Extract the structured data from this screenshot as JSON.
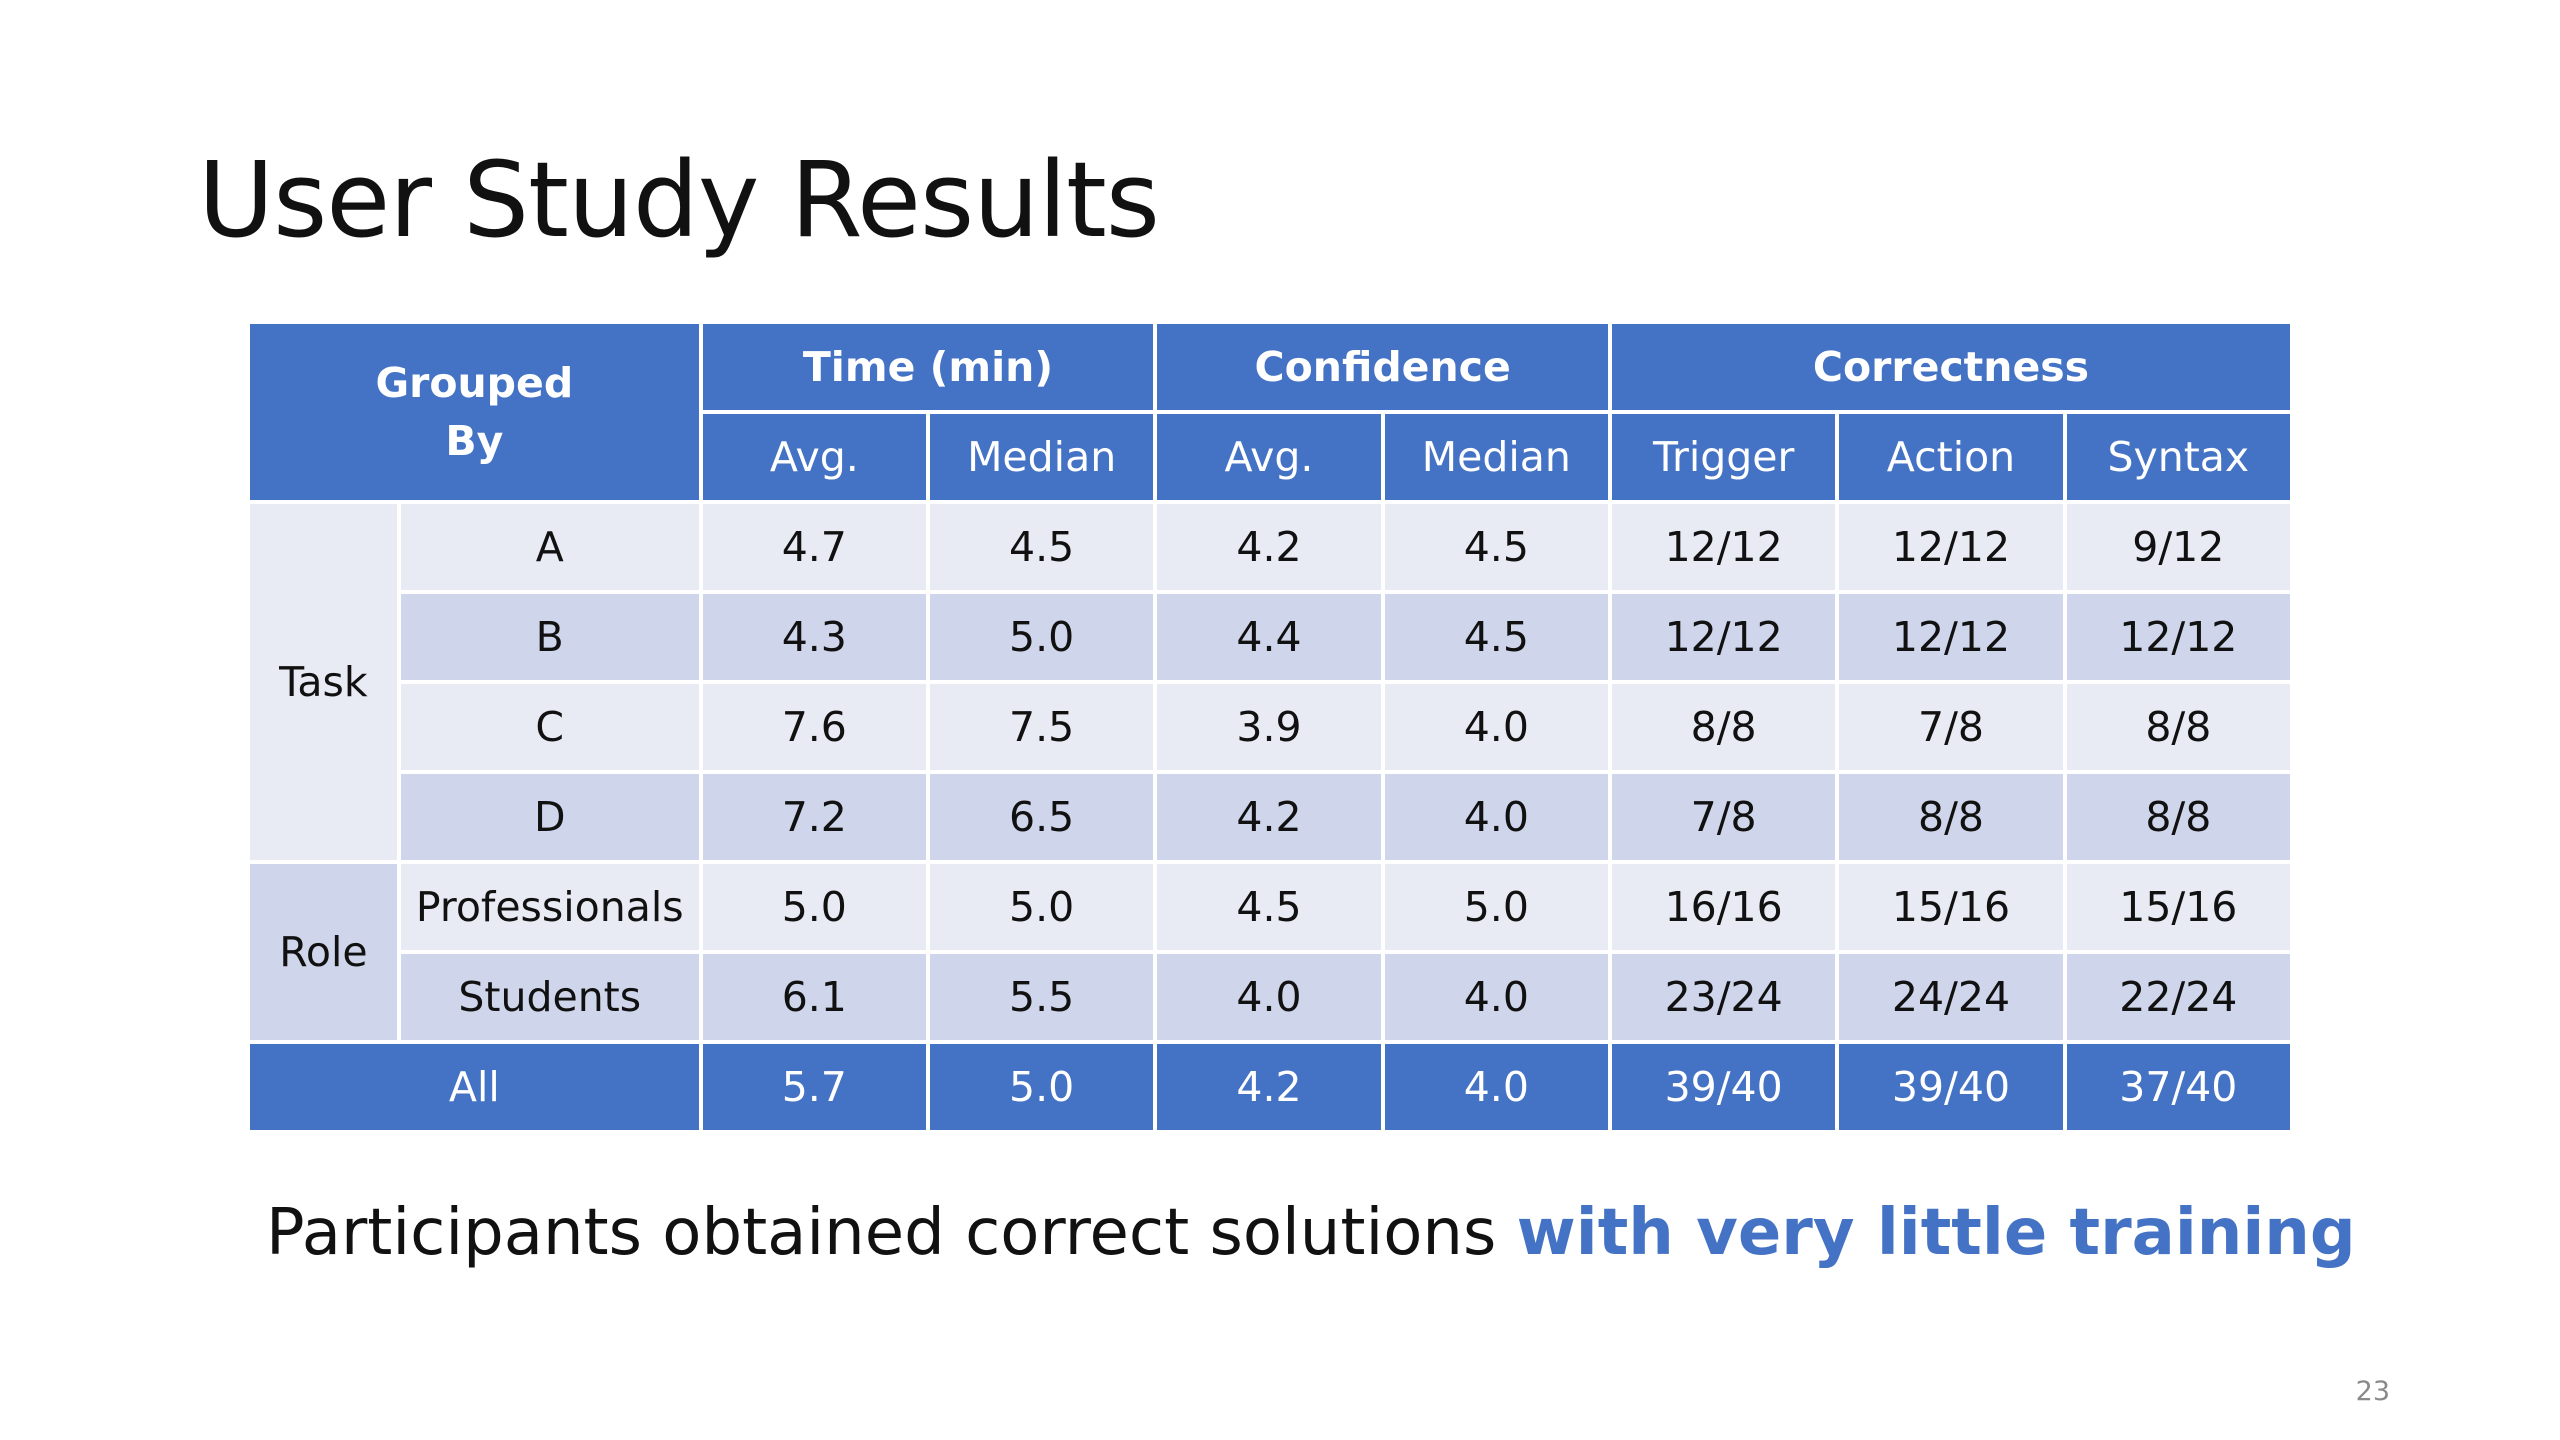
{
  "slide": {
    "title": "User Study Results",
    "page_number": "23"
  },
  "table": {
    "header": {
      "grouped_by": "Grouped By",
      "groups": [
        {
          "label": "Time (min)",
          "sub": [
            "Avg.",
            "Median"
          ]
        },
        {
          "label": "Confidence",
          "sub": [
            "Avg.",
            "Median"
          ]
        },
        {
          "label": "Correctness",
          "sub": [
            "Trigger",
            "Action",
            "Syntax"
          ]
        }
      ]
    },
    "row_groups": [
      {
        "label": "Task",
        "rows": [
          {
            "name": "A",
            "values": [
              "4.7",
              "4.5",
              "4.2",
              "4.5",
              "12/12",
              "12/12",
              "9/12"
            ]
          },
          {
            "name": "B",
            "values": [
              "4.3",
              "5.0",
              "4.4",
              "4.5",
              "12/12",
              "12/12",
              "12/12"
            ]
          },
          {
            "name": "C",
            "values": [
              "7.6",
              "7.5",
              "3.9",
              "4.0",
              "8/8",
              "7/8",
              "8/8"
            ]
          },
          {
            "name": "D",
            "values": [
              "7.2",
              "6.5",
              "4.2",
              "4.0",
              "7/8",
              "8/8",
              "8/8"
            ]
          }
        ]
      },
      {
        "label": "Role",
        "rows": [
          {
            "name": "Professionals",
            "values": [
              "5.0",
              "5.0",
              "4.5",
              "5.0",
              "16/16",
              "15/16",
              "15/16"
            ]
          },
          {
            "name": "Students",
            "values": [
              "6.1",
              "5.5",
              "4.0",
              "4.0",
              "23/24",
              "24/24",
              "22/24"
            ]
          }
        ]
      }
    ],
    "total": {
      "name": "All",
      "values": [
        "5.7",
        "5.0",
        "4.2",
        "4.0",
        "39/40",
        "39/40",
        "37/40"
      ]
    }
  },
  "caption": {
    "plain": "Participants obtained correct solutions ",
    "emphasis": "with very little training"
  },
  "colors": {
    "header_blue": "#4472c4",
    "row_light": "#e9ebf4",
    "row_dark": "#cfd5ea",
    "emphasis_blue": "#4472c4"
  }
}
